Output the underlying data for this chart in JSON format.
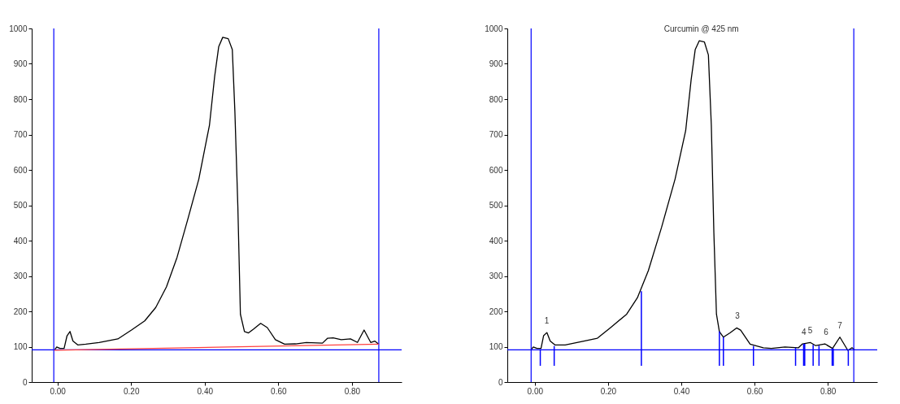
{
  "chart_data": [
    {
      "type": "line",
      "xlim": [
        -0.07,
        0.935
      ],
      "ylim": [
        0,
        1000
      ],
      "xticks": [
        {
          "value": 0,
          "label": "0.00"
        },
        {
          "value": 0.2,
          "label": "0.20"
        },
        {
          "value": 0.4,
          "label": "0.40"
        },
        {
          "value": 0.6,
          "label": "0.60"
        },
        {
          "value": 0.8,
          "label": "0.80"
        }
      ],
      "yticks": [
        0,
        100,
        200,
        300,
        400,
        500,
        600,
        700,
        800,
        900,
        1000
      ],
      "grid": false,
      "series": [
        {
          "color": "#000000",
          "x": [
            -0.007,
            -0.002,
            0.007,
            0.018,
            0.026,
            0.034,
            0.042,
            0.055,
            0.077,
            0.113,
            0.164,
            0.201,
            0.237,
            0.267,
            0.296,
            0.325,
            0.354,
            0.384,
            0.413,
            0.427,
            0.438,
            0.449,
            0.464,
            0.475,
            0.482,
            0.49,
            0.497,
            0.508,
            0.519,
            0.533,
            0.552,
            0.57,
            0.592,
            0.617,
            0.647,
            0.676,
            0.72,
            0.734,
            0.749,
            0.771,
            0.796,
            0.815,
            0.833,
            0.851,
            0.862,
            0.873
          ],
          "values": [
            92,
            99,
            95,
            95,
            131,
            143,
            116,
            105,
            107,
            112,
            122,
            147,
            173,
            211,
            269,
            353,
            460,
            574,
            727,
            864,
            948,
            975,
            971,
            940,
            765,
            498,
            192,
            143,
            139,
            150,
            166,
            154,
            120,
            107,
            108,
            112,
            110,
            124,
            125,
            120,
            122,
            112,
            147,
            112,
            116,
            107
          ]
        },
        {
          "color": "#ff4040",
          "x": [
            -0.009,
            0.873
          ],
          "values": [
            90,
            107
          ]
        }
      ],
      "ref_lines": [
        {
          "axis": "x",
          "value": -0.01,
          "color": "#0000ff"
        },
        {
          "axis": "x",
          "value": 0.873,
          "color": "#0000ff"
        },
        {
          "axis": "y",
          "value": 91,
          "color": "#0000ff"
        }
      ]
    },
    {
      "type": "line",
      "xlim": [
        -0.075,
        0.935
      ],
      "ylim": [
        0,
        1000
      ],
      "xticks": [
        {
          "value": 0,
          "label": "0.00"
        },
        {
          "value": 0.2,
          "label": "0.20"
        },
        {
          "value": 0.4,
          "label": "0.40"
        },
        {
          "value": 0.6,
          "label": "0.60"
        },
        {
          "value": 0.8,
          "label": "0.80"
        }
      ],
      "yticks": [
        0,
        100,
        200,
        300,
        400,
        500,
        600,
        700,
        800,
        900,
        1000
      ],
      "grid": false,
      "series": [
        {
          "color": "#000000",
          "x": [
            -0.009,
            -0.004,
            0.006,
            0.017,
            0.024,
            0.033,
            0.042,
            0.055,
            0.083,
            0.134,
            0.171,
            0.207,
            0.251,
            0.28,
            0.31,
            0.346,
            0.383,
            0.412,
            0.427,
            0.438,
            0.449,
            0.463,
            0.474,
            0.482,
            0.489,
            0.496,
            0.504,
            0.515,
            0.533,
            0.551,
            0.562,
            0.588,
            0.624,
            0.646,
            0.683,
            0.72,
            0.731,
            0.752,
            0.767,
            0.792,
            0.813,
            0.833,
            0.855,
            0.866,
            0.873
          ],
          "values": [
            93,
            99,
            95,
            95,
            131,
            140,
            116,
            105,
            105,
            116,
            124,
            154,
            192,
            238,
            315,
            437,
            574,
            711,
            856,
            940,
            965,
            962,
            925,
            727,
            421,
            192,
            143,
            127,
            139,
            153,
            147,
            107,
            97,
            95,
            99,
            97,
            108,
            112,
            103,
            108,
            95,
            127,
            89,
            97,
            92
          ]
        },
        {
          "type": "bar",
          "color": "#0000ff",
          "x": [
            0.015,
            0.053,
            0.291,
            0.504,
            0.515,
            0.597,
            0.712,
            0.734,
            0.737,
            0.76,
            0.776,
            0.812,
            0.815,
            0.856
          ],
          "base": [
            46,
            46,
            46,
            46,
            46,
            46,
            46,
            46,
            46,
            46,
            46,
            46,
            46,
            46
          ],
          "values": [
            47,
            56,
            211,
            97,
            81,
            56,
            51,
            62,
            62,
            59,
            57,
            49,
            49,
            43
          ]
        }
      ],
      "ref_lines": [
        {
          "axis": "x",
          "value": -0.01,
          "color": "#0000ff"
        },
        {
          "axis": "x",
          "value": 0.871,
          "color": "#0000ff"
        },
        {
          "axis": "y",
          "value": 91,
          "color": "#0000ff"
        }
      ],
      "annotations": [
        {
          "text": "Curcumin @ 425 nm",
          "x": 0.455,
          "y": 965
        },
        {
          "text": "1",
          "x": 0.033,
          "y": 140
        },
        {
          "text": "3",
          "x": 0.553,
          "y": 153
        },
        {
          "text": "4",
          "x": 0.735,
          "y": 108
        },
        {
          "text": "5",
          "x": 0.752,
          "y": 112
        },
        {
          "text": "6",
          "x": 0.795,
          "y": 108
        },
        {
          "text": "7",
          "x": 0.833,
          "y": 127
        }
      ]
    }
  ]
}
